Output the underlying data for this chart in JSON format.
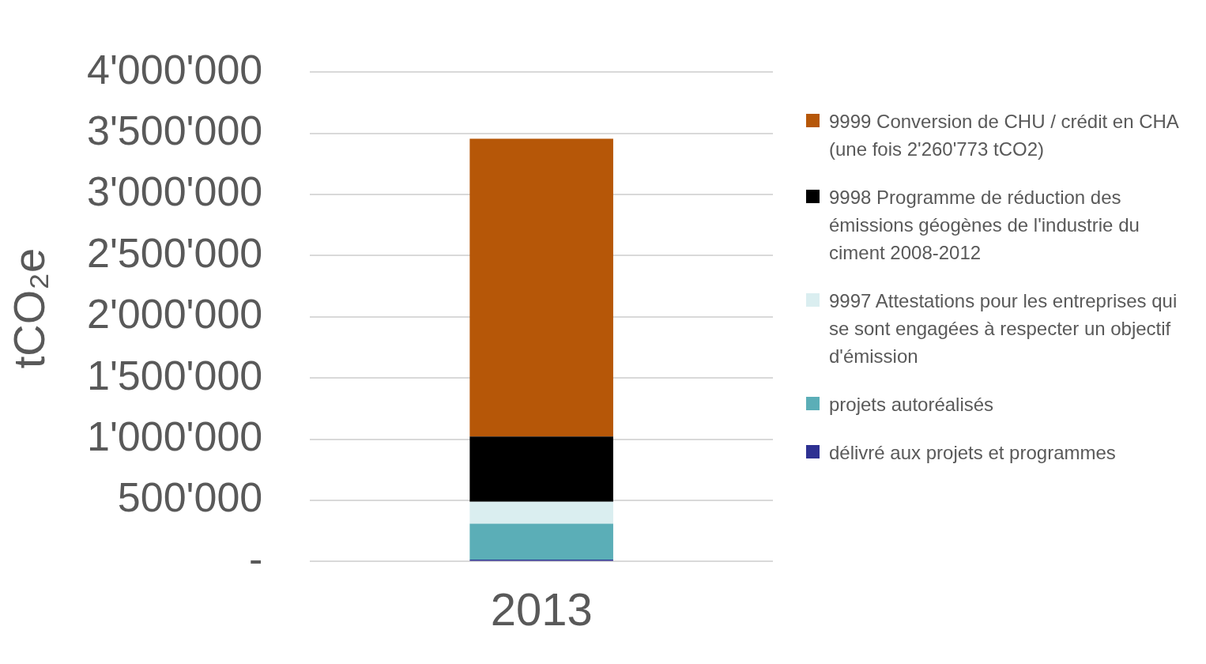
{
  "chart_data": {
    "type": "bar",
    "stacked": true,
    "ylabel": "tCO₂e",
    "categories": [
      "2013"
    ],
    "series": [
      {
        "name": "délivré aux projets et programmes",
        "color": "#2e3192",
        "values": [
          15000
        ]
      },
      {
        "name": "projets autoréalisés",
        "color": "#5baeb7",
        "values": [
          295000
        ]
      },
      {
        "name": "9997 Attestations pour les entreprises qui se sont engagées à respecter un objectif d'émission",
        "color": "#daeef0",
        "values": [
          179000
        ]
      },
      {
        "name": "9998 Programme de réduction des émissions géogènes de l'industrie du ciment 2008-2012",
        "color": "#000000",
        "values": [
          533000
        ]
      },
      {
        "name": "9999 Conversion de CHU / crédit en CHA (une fois 2'260'773 tCO2)",
        "color": "#b65708",
        "values": [
          2433000
        ]
      }
    ],
    "ylim": [
      0,
      4000000
    ],
    "yticks": [
      {
        "value": 0,
        "label": "-"
      },
      {
        "value": 500000,
        "label": "500'000"
      },
      {
        "value": 1000000,
        "label": "1'000'000"
      },
      {
        "value": 1500000,
        "label": "1'500'000"
      },
      {
        "value": 2000000,
        "label": "2'000'000"
      },
      {
        "value": 2500000,
        "label": "2'500'000"
      },
      {
        "value": 3000000,
        "label": "3'000'000"
      },
      {
        "value": 3500000,
        "label": "3'500'000"
      },
      {
        "value": 4000000,
        "label": "4'000'000"
      }
    ],
    "grid": "y",
    "legend": "right"
  }
}
